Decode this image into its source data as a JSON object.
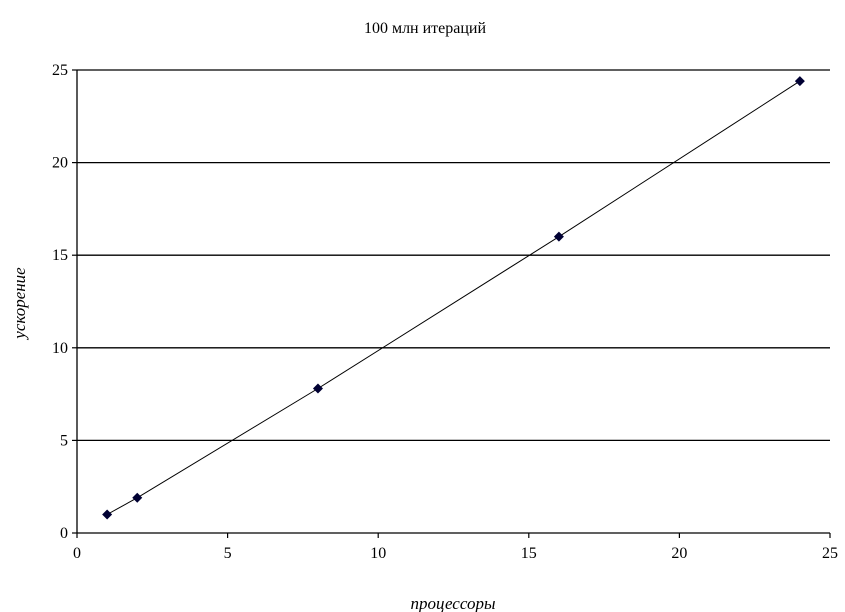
{
  "chart_data": {
    "type": "scatter",
    "title": "100 млн итераций",
    "xlabel": "процессоры",
    "ylabel": "ускорение",
    "xlim": [
      0,
      25
    ],
    "ylim": [
      0,
      25
    ],
    "x_ticks": [
      "0",
      "5",
      "10",
      "15",
      "20",
      "25"
    ],
    "y_ticks": [
      "0",
      "5",
      "10",
      "15",
      "20",
      "25"
    ],
    "grid": "horizontal",
    "legend": "none",
    "series": [
      {
        "x": [
          1,
          2,
          8,
          16,
          24
        ],
        "y": [
          1.0,
          1.9,
          7.8,
          16.0,
          24.4
        ],
        "color": "#000033",
        "line_color": "#000000",
        "marker": "diamond"
      }
    ]
  }
}
